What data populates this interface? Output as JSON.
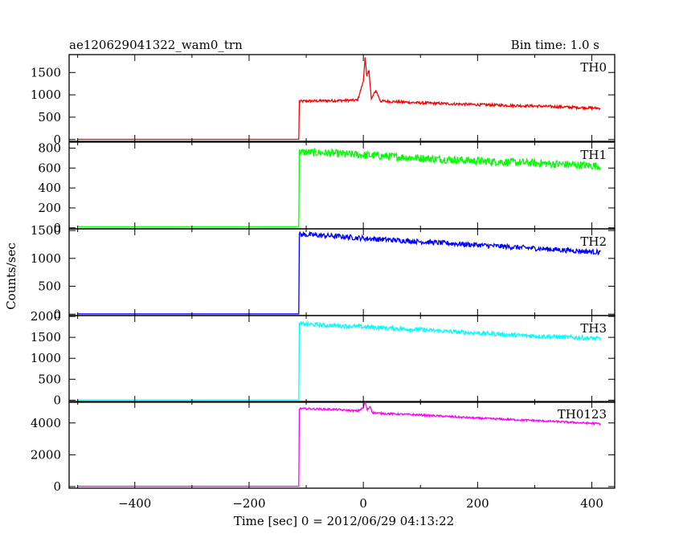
{
  "chart_data": {
    "type": "line",
    "title_left": "ae120629041322_wam0_trn",
    "title_right": "Bin time: 1.0 s",
    "xlabel": "Time [sec] 0 = 2012/06/29 04:13:22",
    "ylabel": "Counts/sec",
    "xlim": [
      -515,
      440
    ],
    "x_ticks": [
      -400,
      -200,
      0,
      200,
      400
    ],
    "x_tick_labels": [
      "−400",
      "−200",
      "0",
      "200",
      "400"
    ],
    "data_start": -500,
    "data_end": 415,
    "onset": -113,
    "panels": [
      {
        "name": "TH0",
        "color": "#ff0000",
        "ylim": [
          -40,
          1900
        ],
        "ticks": [
          0,
          500,
          1000,
          1500
        ],
        "baseline": 5,
        "series_points": [
          [
            -500,
            5
          ],
          [
            -113,
            5
          ],
          [
            -112,
            850
          ],
          [
            -100,
            860
          ],
          [
            -50,
            870
          ],
          [
            -10,
            880
          ],
          [
            0,
            1300
          ],
          [
            3,
            1850
          ],
          [
            6,
            1400
          ],
          [
            10,
            1550
          ],
          [
            14,
            900
          ],
          [
            22,
            1100
          ],
          [
            30,
            860
          ],
          [
            100,
            820
          ],
          [
            200,
            780
          ],
          [
            300,
            750
          ],
          [
            415,
            700
          ]
        ],
        "noise": 30
      },
      {
        "name": "TH1",
        "color": "#00ff00",
        "ylim": [
          -10,
          860
        ],
        "ticks": [
          0,
          200,
          400,
          600,
          800
        ],
        "baseline": 12,
        "series_points": [
          [
            -500,
            12
          ],
          [
            -113,
            12
          ],
          [
            -112,
            760
          ],
          [
            -60,
            750
          ],
          [
            0,
            730
          ],
          [
            100,
            700
          ],
          [
            200,
            670
          ],
          [
            300,
            650
          ],
          [
            415,
            620
          ]
        ],
        "noise": 40
      },
      {
        "name": "TH2",
        "color": "#0000ff",
        "ylim": [
          -25,
          1530
        ],
        "ticks": [
          0,
          500,
          1000,
          1500
        ],
        "baseline": 5,
        "series_points": [
          [
            -500,
            5
          ],
          [
            -113,
            5
          ],
          [
            -112,
            1430
          ],
          [
            -50,
            1400
          ],
          [
            0,
            1360
          ],
          [
            100,
            1300
          ],
          [
            200,
            1240
          ],
          [
            300,
            1180
          ],
          [
            415,
            1110
          ]
        ],
        "noise": 45
      },
      {
        "name": "TH3",
        "color": "#00ffff",
        "ylim": [
          -50,
          2020
        ],
        "ticks": [
          0,
          500,
          1000,
          1500,
          2000
        ],
        "baseline": 5,
        "series_points": [
          [
            -500,
            5
          ],
          [
            -113,
            5
          ],
          [
            -112,
            1820
          ],
          [
            -50,
            1780
          ],
          [
            0,
            1750
          ],
          [
            100,
            1680
          ],
          [
            200,
            1600
          ],
          [
            300,
            1530
          ],
          [
            415,
            1470
          ]
        ],
        "noise": 50
      },
      {
        "name": "TH0123",
        "color": "#ff00ff",
        "ylim": [
          -100,
          5350
        ],
        "ticks": [
          0,
          2000,
          4000
        ],
        "baseline": 20,
        "series_points": [
          [
            -500,
            20
          ],
          [
            -113,
            20
          ],
          [
            -112,
            4900
          ],
          [
            -50,
            4850
          ],
          [
            -10,
            4750
          ],
          [
            0,
            4950
          ],
          [
            3,
            5300
          ],
          [
            7,
            4800
          ],
          [
            12,
            5050
          ],
          [
            16,
            4650
          ],
          [
            30,
            4600
          ],
          [
            100,
            4500
          ],
          [
            200,
            4300
          ],
          [
            300,
            4150
          ],
          [
            415,
            3950
          ]
        ],
        "noise": 60
      }
    ]
  }
}
